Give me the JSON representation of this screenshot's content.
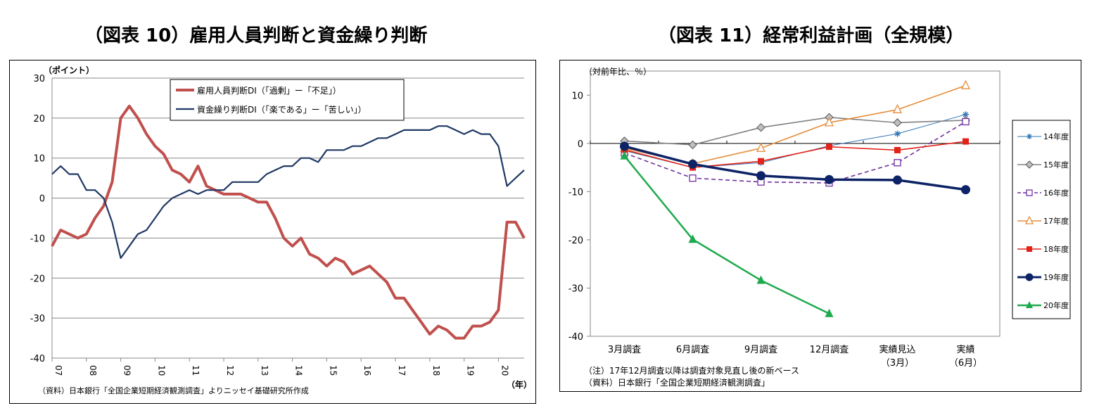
{
  "chart_data": [
    {
      "type": "line",
      "title": "（図表 10）雇用人員判断と資金繰り判断",
      "ylabel": "（ポイント）",
      "xlabel": "（年）",
      "ylim": [
        -40,
        30
      ],
      "yticks": [
        30,
        20,
        10,
        0,
        -10,
        -20,
        -30,
        -40
      ],
      "xticks": [
        "07",
        "08",
        "09",
        "10",
        "11",
        "12",
        "13",
        "14",
        "15",
        "16",
        "17",
        "18",
        "19",
        "20"
      ],
      "grid": true,
      "legend": "top-center",
      "source": "（資料）日本銀行「全国企業短期経済観測調査」よりニッセイ基礎研究所作成",
      "series": [
        {
          "name": "雇用人員判断DI（「過剰」ー「不足」）",
          "color": "#c0504d",
          "values": [
            -12,
            -8,
            -9,
            -10,
            -9,
            -5,
            -2,
            4,
            20,
            23,
            20,
            16,
            13,
            11,
            7,
            6,
            4,
            8,
            3,
            2,
            1,
            1,
            1,
            0,
            -1,
            -1,
            -5,
            -10,
            -12,
            -10,
            -14,
            -15,
            -17,
            -15,
            -16,
            -19,
            -18,
            -17,
            -19,
            -21,
            -25,
            -25,
            -28,
            -31,
            -34,
            -32,
            -33,
            -35,
            -35,
            -32,
            -32,
            -31,
            -28,
            -6,
            -6,
            -10
          ]
        },
        {
          "name": "資金繰り判断DI（「楽である」ー「苦しい」）",
          "color": "#1f3864",
          "values": [
            6,
            8,
            6,
            6,
            2,
            2,
            0,
            -6,
            -15,
            -12,
            -9,
            -8,
            -5,
            -2,
            0,
            1,
            2,
            1,
            2,
            2,
            2,
            4,
            4,
            4,
            4,
            6,
            7,
            8,
            8,
            10,
            10,
            9,
            12,
            12,
            12,
            13,
            13,
            14,
            15,
            15,
            16,
            17,
            17,
            17,
            17,
            18,
            18,
            17,
            16,
            17,
            16,
            16,
            13,
            3,
            5,
            7
          ]
        }
      ]
    },
    {
      "type": "line",
      "title": "（図表 11）経常利益計画（全規模）",
      "ylabel": "（対前年比、％）",
      "ylim": [
        -40,
        15
      ],
      "yticks": [
        10,
        0,
        -10,
        -20,
        -30,
        -40
      ],
      "categories": [
        "3月調査",
        "6月調査",
        "9月調査",
        "12月調査",
        "実績見込",
        "実績"
      ],
      "category_sub": [
        "",
        "",
        "",
        "",
        "（3月）",
        "（6月）"
      ],
      "grid": false,
      "legend": "right",
      "notes": [
        "（注）17年12月調査以降は調査対象見直し後の新ベース",
        "（資料）日本銀行「全国企業短期経済観測調査」"
      ],
      "series": [
        {
          "name": "14年度",
          "color": "#2e75b6",
          "marker": "star",
          "values": [
            -1.5,
            -5.0,
            -4.0,
            -0.5,
            2.0,
            6.0
          ]
        },
        {
          "name": "15年度",
          "color": "#808080",
          "marker": "diamond",
          "values": [
            0.5,
            -0.3,
            3.3,
            5.4,
            4.3,
            4.8
          ]
        },
        {
          "name": "16年度",
          "color": "#7030a0",
          "marker": "square-open",
          "dashed": true,
          "values": [
            -2.0,
            -7.2,
            -8.0,
            -8.2,
            -4.0,
            4.5
          ]
        },
        {
          "name": "17年度",
          "color": "#e58e3c",
          "marker": "triangle-open",
          "values": [
            -1.0,
            -4.2,
            -1.0,
            4.3,
            7.0,
            12.0
          ]
        },
        {
          "name": "18年度",
          "color": "#e32219",
          "marker": "square",
          "values": [
            -1.3,
            -5.0,
            -3.7,
            -0.7,
            -1.4,
            0.4
          ]
        },
        {
          "name": "19年度",
          "color": "#0d2366",
          "marker": "circle",
          "values": [
            -0.6,
            -4.3,
            -6.7,
            -7.5,
            -7.6,
            -9.6
          ]
        },
        {
          "name": "20年度",
          "color": "#1faa4e",
          "marker": "triangle",
          "values": [
            -2.6,
            -19.9,
            -28.4,
            -35.3,
            null,
            null
          ]
        }
      ]
    }
  ]
}
